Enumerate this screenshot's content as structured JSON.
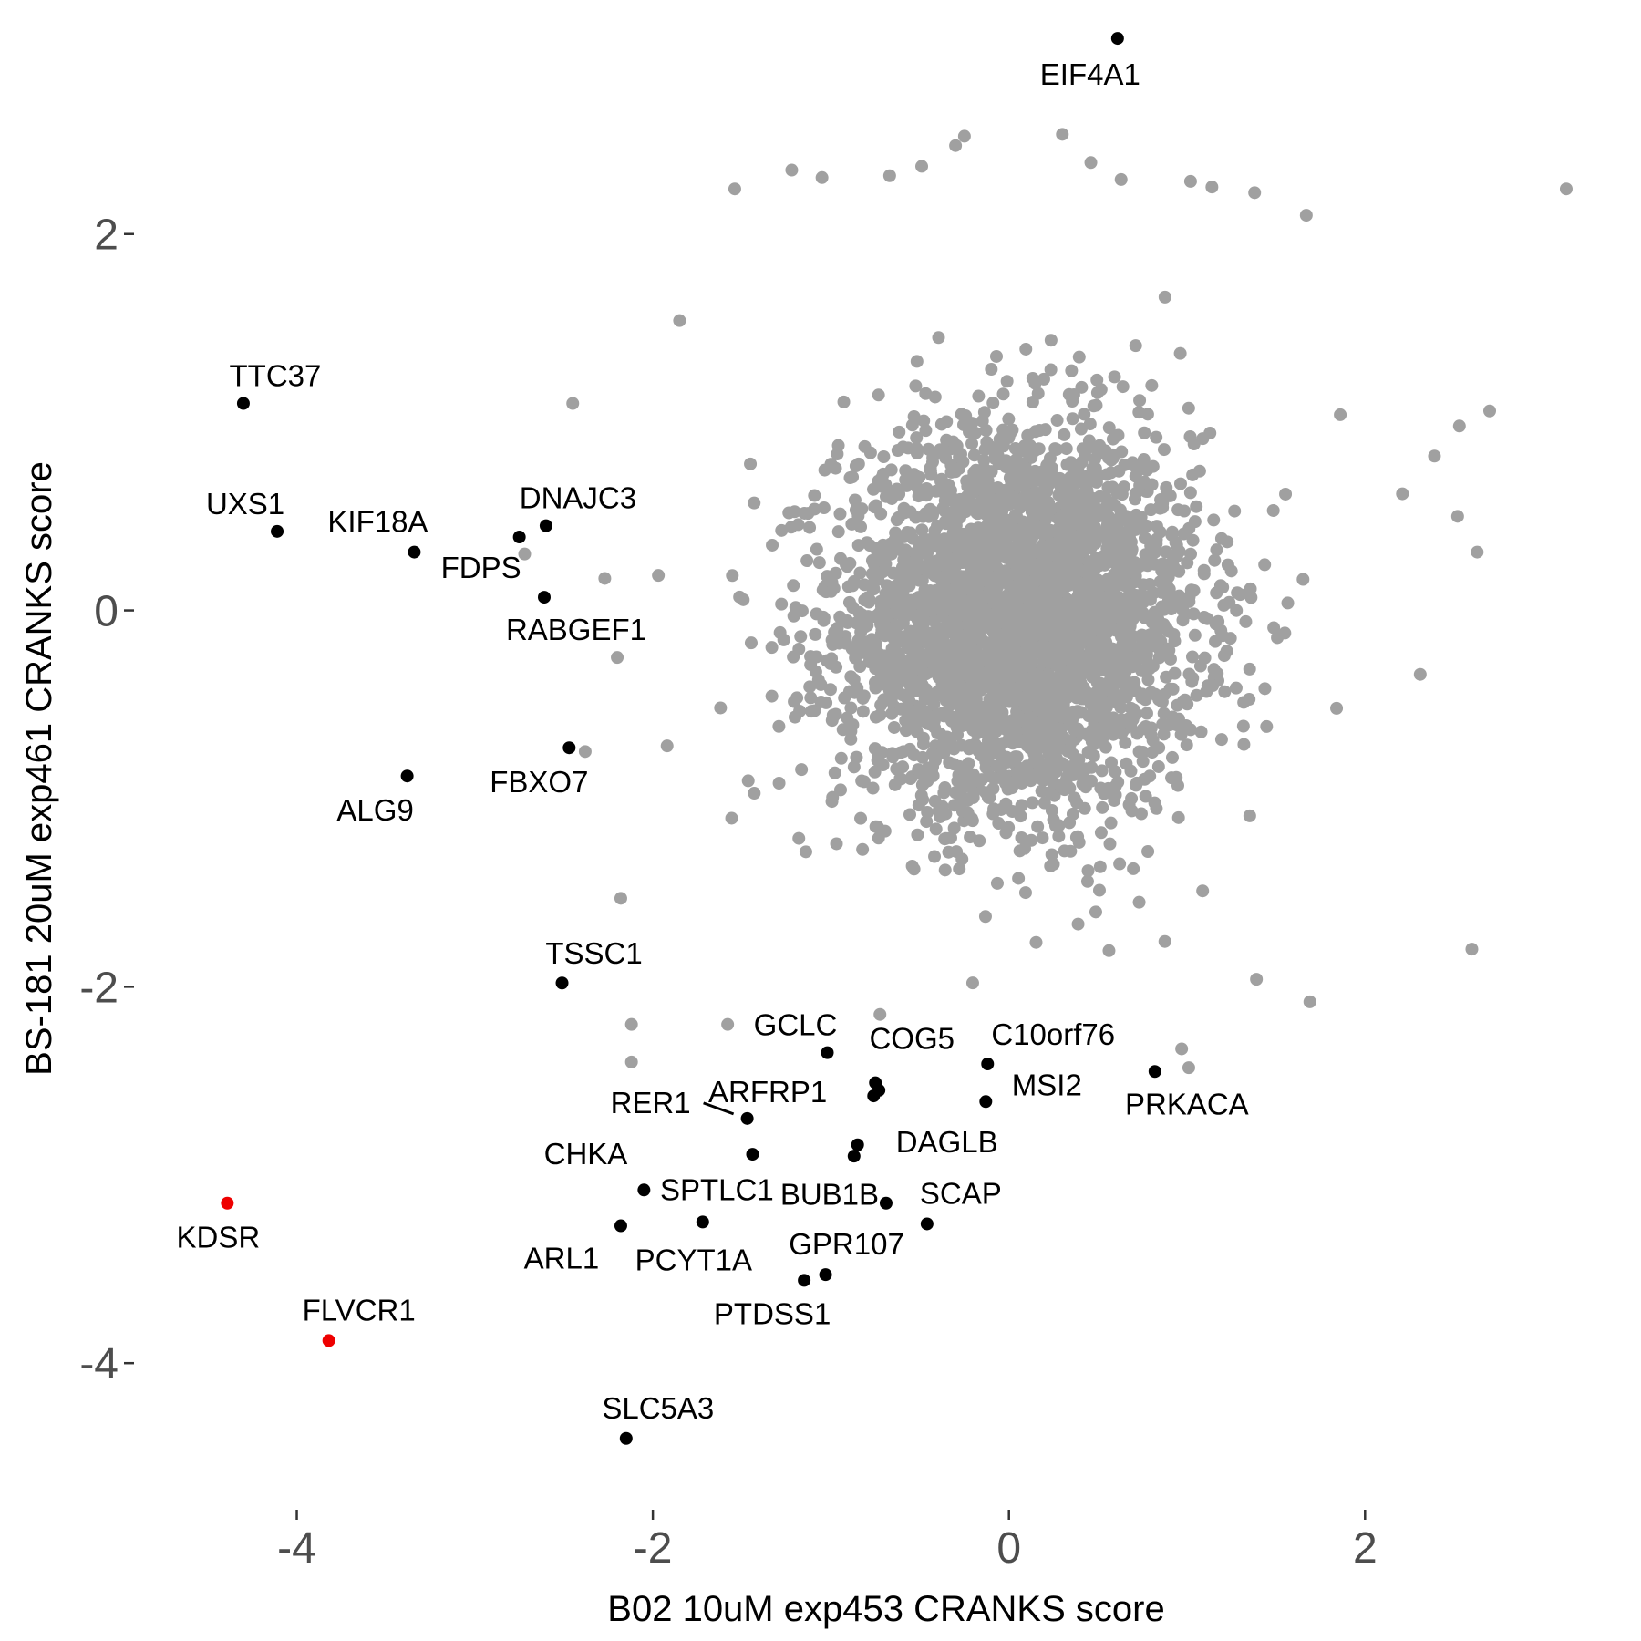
{
  "chart_data": {
    "type": "scatter",
    "xlabel": "B02 10uM exp453 CRANKS score",
    "ylabel": "BS-181 20uM exp461 CRANKS score",
    "xlim": [
      -4.95,
      3.55
    ],
    "ylim": [
      -4.75,
      3.05
    ],
    "x_ticks": [
      -4,
      -2,
      0,
      2
    ],
    "y_ticks": [
      -4,
      -2,
      0,
      2
    ],
    "x_tick_labels": [
      "-4",
      "-2",
      "0",
      "2"
    ],
    "y_tick_labels": [
      "-4",
      "-2",
      "0",
      "2"
    ],
    "grid": false,
    "legend": "none",
    "colors": {
      "background": "#a0a0a0",
      "highlight": "#000000",
      "special": "#ee0000",
      "tick_text": "#4d4d4d"
    },
    "background_cloud": {
      "description_color": "#a0a0a0",
      "center": [
        0.05,
        -0.05
      ],
      "sd": [
        0.5,
        0.5
      ],
      "approx_count": 3500
    },
    "background_outliers": [
      {
        "x": 3.13,
        "y": 2.24
      },
      {
        "x": -1.54,
        "y": 2.24
      },
      {
        "x": -1.22,
        "y": 2.34
      },
      {
        "x": -1.05,
        "y": 2.3
      },
      {
        "x": -0.67,
        "y": 2.31
      },
      {
        "x": -0.49,
        "y": 2.36
      },
      {
        "x": -0.3,
        "y": 2.47
      },
      {
        "x": 0.46,
        "y": 2.38
      },
      {
        "x": 0.63,
        "y": 2.29
      },
      {
        "x": 1.02,
        "y": 2.28
      },
      {
        "x": 1.14,
        "y": 2.25
      },
      {
        "x": 1.38,
        "y": 2.22
      },
      {
        "x": 2.63,
        "y": 0.31
      },
      {
        "x": 2.7,
        "y": 1.06
      },
      {
        "x": 2.53,
        "y": 0.98
      },
      {
        "x": 2.6,
        "y": -1.8
      },
      {
        "x": 2.39,
        "y": 0.82
      },
      {
        "x": 2.52,
        "y": 0.5
      },
      {
        "x": 1.69,
        "y": -2.08
      },
      {
        "x": 1.39,
        "y": -1.96
      },
      {
        "x": -2.45,
        "y": 1.1
      },
      {
        "x": -2.72,
        "y": 0.3
      },
      {
        "x": -2.27,
        "y": 0.17
      },
      {
        "x": -2.2,
        "y": -0.25
      },
      {
        "x": -2.38,
        "y": -0.75
      },
      {
        "x": -2.12,
        "y": -2.2
      },
      {
        "x": -2.12,
        "y": -2.4
      },
      {
        "x": -1.58,
        "y": -2.2
      },
      {
        "x": 1.67,
        "y": 2.1
      },
      {
        "x": 2.21,
        "y": 0.62
      },
      {
        "x": 2.31,
        "y": -0.34
      },
      {
        "x": 1.84,
        "y": -0.52
      },
      {
        "x": -1.92,
        "y": -0.72
      },
      {
        "x": -2.18,
        "y": -1.53
      },
      {
        "x": 0.97,
        "y": -2.33
      },
      {
        "x": 1.01,
        "y": -2.43
      },
      {
        "x": -0.25,
        "y": 2.52
      },
      {
        "x": 0.3,
        "y": 2.53
      },
      {
        "x": -1.85,
        "y": 1.54
      }
    ],
    "labeled_points": [
      {
        "label": "EIF4A1",
        "x": 0.61,
        "y": 3.04,
        "color": "#000000"
      },
      {
        "label": "TTC37",
        "x": -4.3,
        "y": 1.1,
        "color": "#000000"
      },
      {
        "label": "UXS1",
        "x": -4.11,
        "y": 0.42,
        "color": "#000000"
      },
      {
        "label": "KIF18A",
        "x": -3.34,
        "y": 0.31,
        "color": "#000000"
      },
      {
        "label": "DNAJC3",
        "x": -2.6,
        "y": 0.45,
        "color": "#000000"
      },
      {
        "label": "FDPS",
        "x": -2.75,
        "y": 0.39,
        "color": "#000000"
      },
      {
        "label": "RABGEF1",
        "x": -2.61,
        "y": 0.07,
        "color": "#000000"
      },
      {
        "label": "FBXO7",
        "x": -2.47,
        "y": -0.73,
        "color": "#000000"
      },
      {
        "label": "ALG9",
        "x": -3.38,
        "y": -0.88,
        "color": "#000000"
      },
      {
        "label": "TSSC1",
        "x": -2.51,
        "y": -1.98,
        "color": "#000000"
      },
      {
        "label": "GCLC",
        "x": -1.02,
        "y": -2.35,
        "color": "#000000"
      },
      {
        "label": "COG5",
        "x": -0.75,
        "y": -2.51,
        "color": "#000000"
      },
      {
        "label": "C10orf76",
        "x": -0.12,
        "y": -2.41,
        "color": "#000000"
      },
      {
        "label": "MSI2",
        "x": -0.13,
        "y": -2.61,
        "color": "#000000"
      },
      {
        "label": "PRKACA",
        "x": 0.82,
        "y": -2.45,
        "color": "#000000"
      },
      {
        "label": "ARFRP1",
        "x": -0.73,
        "y": -2.55,
        "color": "#000000"
      },
      {
        "label": "RER1",
        "x": -1.47,
        "y": -2.7,
        "color": "#000000"
      },
      {
        "label": "DAGLB",
        "x": -0.85,
        "y": -2.84,
        "color": "#000000"
      },
      {
        "label": "CHKA",
        "x": -1.44,
        "y": -2.89,
        "color": "#000000"
      },
      {
        "label": "SPTLC1",
        "x": -2.05,
        "y": -3.08,
        "color": "#000000"
      },
      {
        "label": "BUB1B",
        "x": -0.69,
        "y": -3.15,
        "color": "#000000"
      },
      {
        "label": "SCAP",
        "x": -0.46,
        "y": -3.26,
        "color": "#000000"
      },
      {
        "label": "ARL1",
        "x": -2.18,
        "y": -3.27,
        "color": "#000000"
      },
      {
        "label": "PCYT1A",
        "x": -1.72,
        "y": -3.25,
        "color": "#000000"
      },
      {
        "label": "GPR107",
        "x": -1.03,
        "y": -3.53,
        "color": "#000000"
      },
      {
        "label": "PTDSS1",
        "x": -1.15,
        "y": -3.56,
        "color": "#000000"
      },
      {
        "label": "KDSR",
        "x": -4.39,
        "y": -3.15,
        "color": "#ee0000"
      },
      {
        "label": "FLVCR1",
        "x": -3.82,
        "y": -3.88,
        "color": "#ee0000"
      },
      {
        "label": "SLC5A3",
        "x": -2.15,
        "y": -4.4,
        "color": "#000000"
      }
    ],
    "unlabeled_black_points": [
      {
        "x": -0.87,
        "y": -2.9
      },
      {
        "x": -0.76,
        "y": -2.58
      }
    ]
  }
}
